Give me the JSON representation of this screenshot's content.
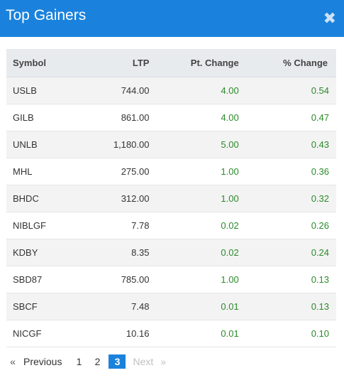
{
  "header": {
    "title": "Top Gainers",
    "close_symbol": "✖"
  },
  "table": {
    "columns": [
      "Symbol",
      "LTP",
      "Pt. Change",
      "% Change"
    ],
    "rows": [
      {
        "symbol": "USLB",
        "ltp": "744.00",
        "pt_change": "4.00",
        "pct_change": "0.54"
      },
      {
        "symbol": "GILB",
        "ltp": "861.00",
        "pt_change": "4.00",
        "pct_change": "0.47"
      },
      {
        "symbol": "UNLB",
        "ltp": "1,180.00",
        "pt_change": "5.00",
        "pct_change": "0.43"
      },
      {
        "symbol": "MHL",
        "ltp": "275.00",
        "pt_change": "1.00",
        "pct_change": "0.36"
      },
      {
        "symbol": "BHDC",
        "ltp": "312.00",
        "pt_change": "1.00",
        "pct_change": "0.32"
      },
      {
        "symbol": "NIBLGF",
        "ltp": "7.78",
        "pt_change": "0.02",
        "pct_change": "0.26"
      },
      {
        "symbol": "KDBY",
        "ltp": "8.35",
        "pt_change": "0.02",
        "pct_change": "0.24"
      },
      {
        "symbol": "SBD87",
        "ltp": "785.00",
        "pt_change": "1.00",
        "pct_change": "0.13"
      },
      {
        "symbol": "SBCF",
        "ltp": "7.48",
        "pt_change": "0.01",
        "pct_change": "0.13"
      },
      {
        "symbol": "NICGF",
        "ltp": "10.16",
        "pt_change": "0.01",
        "pct_change": "0.10"
      }
    ]
  },
  "pagination": {
    "first_arrow": "«",
    "previous_label": "Previous",
    "pages": [
      "1",
      "2",
      "3"
    ],
    "active_page": "3",
    "next_label": "Next",
    "last_arrow": "»"
  },
  "colors": {
    "header_bg": "#1a82dc",
    "positive": "#2b8a2b",
    "active_page_bg": "#1a82dc"
  }
}
